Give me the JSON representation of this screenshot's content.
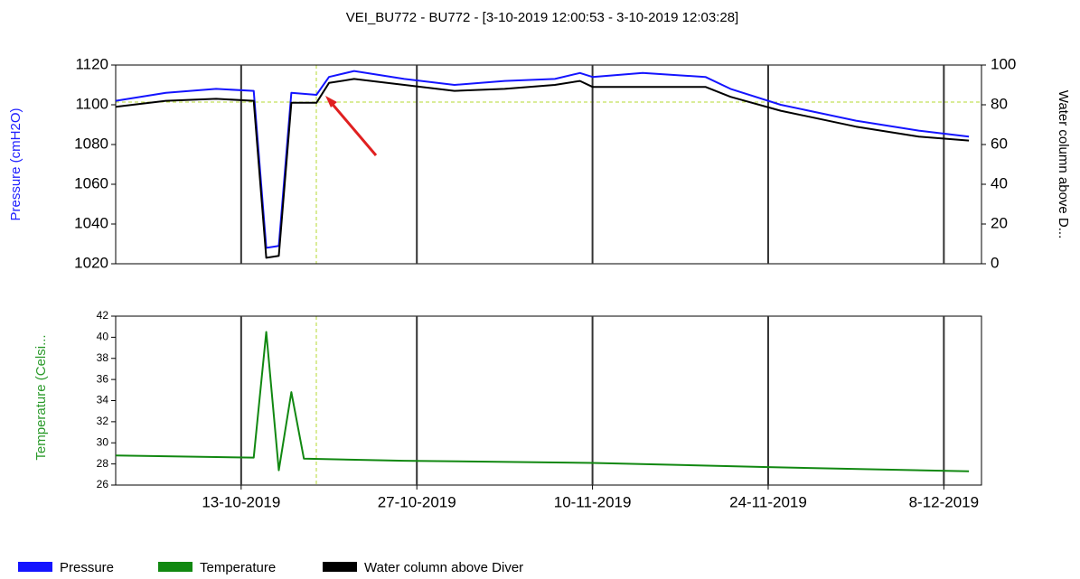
{
  "chart_data": [
    {
      "type": "line",
      "title": "VEI_BU772 - BU772 -  [3-10-2019 12:00:53 - 3-10-2019 12:03:28]",
      "y_label": "Pressure (cmH2O)",
      "y2_label": "Water column above D...",
      "x": [
        "2019-10-03",
        "2019-10-07",
        "2019-10-11",
        "2019-10-14",
        "2019-10-15",
        "2019-10-16",
        "2019-10-17",
        "2019-10-19",
        "2019-10-20",
        "2019-10-22",
        "2019-10-26",
        "2019-10-30",
        "2019-11-03",
        "2019-11-07",
        "2019-11-09",
        "2019-11-10",
        "2019-11-14",
        "2019-11-19",
        "2019-11-21",
        "2019-11-25",
        "2019-12-01",
        "2019-12-06",
        "2019-12-10"
      ],
      "xlim": [
        "2019-10-03",
        "2019-12-11"
      ],
      "ylim": [
        1020,
        1120
      ],
      "yticks": [
        1020,
        1040,
        1060,
        1080,
        1100,
        1120
      ],
      "y2lim": [
        0,
        100
      ],
      "y2ticks": [
        0,
        20,
        40,
        60,
        80,
        100
      ],
      "grid": true,
      "series": [
        {
          "name": "Pressure",
          "color": "#1414ff",
          "values": [
            1102,
            1106,
            1108,
            1107,
            1028,
            1029,
            1106,
            1105,
            1114,
            1117,
            1113,
            1110,
            1112,
            1113,
            1116,
            1114,
            1116,
            1114,
            1108,
            1100,
            1092,
            1087,
            1084
          ]
        },
        {
          "name": "Water column above Diver",
          "color": "#000000",
          "axis": "y2",
          "values": [
            79,
            82,
            83,
            82,
            3,
            4,
            81,
            81,
            91,
            93,
            90,
            87,
            88,
            90,
            92,
            89,
            89,
            89,
            84,
            77,
            69,
            64,
            62
          ]
        }
      ]
    },
    {
      "type": "line",
      "y_label": "Temperature (Celsi...",
      "x": [
        "2019-10-03",
        "2019-10-14",
        "2019-10-15",
        "2019-10-16",
        "2019-10-17",
        "2019-10-18",
        "2019-10-26",
        "2019-11-10",
        "2019-11-24",
        "2019-12-10"
      ],
      "xlim": [
        "2019-10-03",
        "2019-12-11"
      ],
      "xticks": [
        {
          "value": "2019-10-13",
          "label": "13-10-2019"
        },
        {
          "value": "2019-10-27",
          "label": "27-10-2019"
        },
        {
          "value": "2019-11-10",
          "label": "10-11-2019"
        },
        {
          "value": "2019-11-24",
          "label": "24-11-2019"
        },
        {
          "value": "2019-12-08",
          "label": "8-12-2019"
        }
      ],
      "ylim": [
        26,
        42
      ],
      "yticks": [
        26,
        28,
        30,
        32,
        34,
        36,
        38,
        40,
        42
      ],
      "grid": true,
      "series": [
        {
          "name": "Temperature",
          "color": "#118811",
          "values": [
            28.8,
            28.6,
            40.5,
            27.4,
            34.8,
            28.5,
            28.3,
            28.1,
            27.7,
            27.3
          ]
        }
      ]
    }
  ]
}
